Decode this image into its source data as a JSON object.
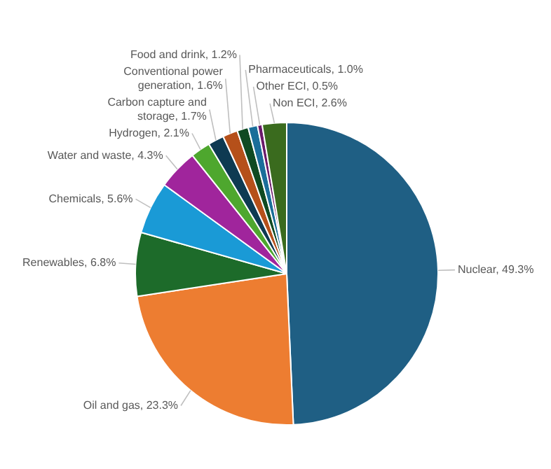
{
  "chart_data": {
    "type": "pie",
    "categories": [
      "Nuclear",
      "Oil and gas",
      "Renewables",
      "Chemicals",
      "Water and waste",
      "Hydrogen",
      "Carbon capture and storage",
      "Conventional power generation",
      "Food and drink",
      "Pharmaceuticals",
      "Other ECI",
      "Non ECI"
    ],
    "values": [
      49.3,
      23.3,
      6.8,
      5.6,
      4.3,
      2.1,
      1.7,
      1.6,
      1.2,
      1.0,
      0.5,
      2.6
    ],
    "colors": [
      "#1f5f84",
      "#ed7d31",
      "#1d6b2a",
      "#1a9ad6",
      "#a0259c",
      "#4ea72e",
      "#0e3a52",
      "#b5501a",
      "#0f4a22",
      "#1a6e9a",
      "#6a1a6a",
      "#3a6b1e"
    ],
    "value_labels": [
      "49.3%",
      "23.3%",
      "6.8%",
      "5.6%",
      "4.3%",
      "2.1%",
      "1.7%",
      "1.6%",
      "1.2%",
      "1.0%",
      "0.5%",
      "2.6%"
    ],
    "legend": false
  }
}
